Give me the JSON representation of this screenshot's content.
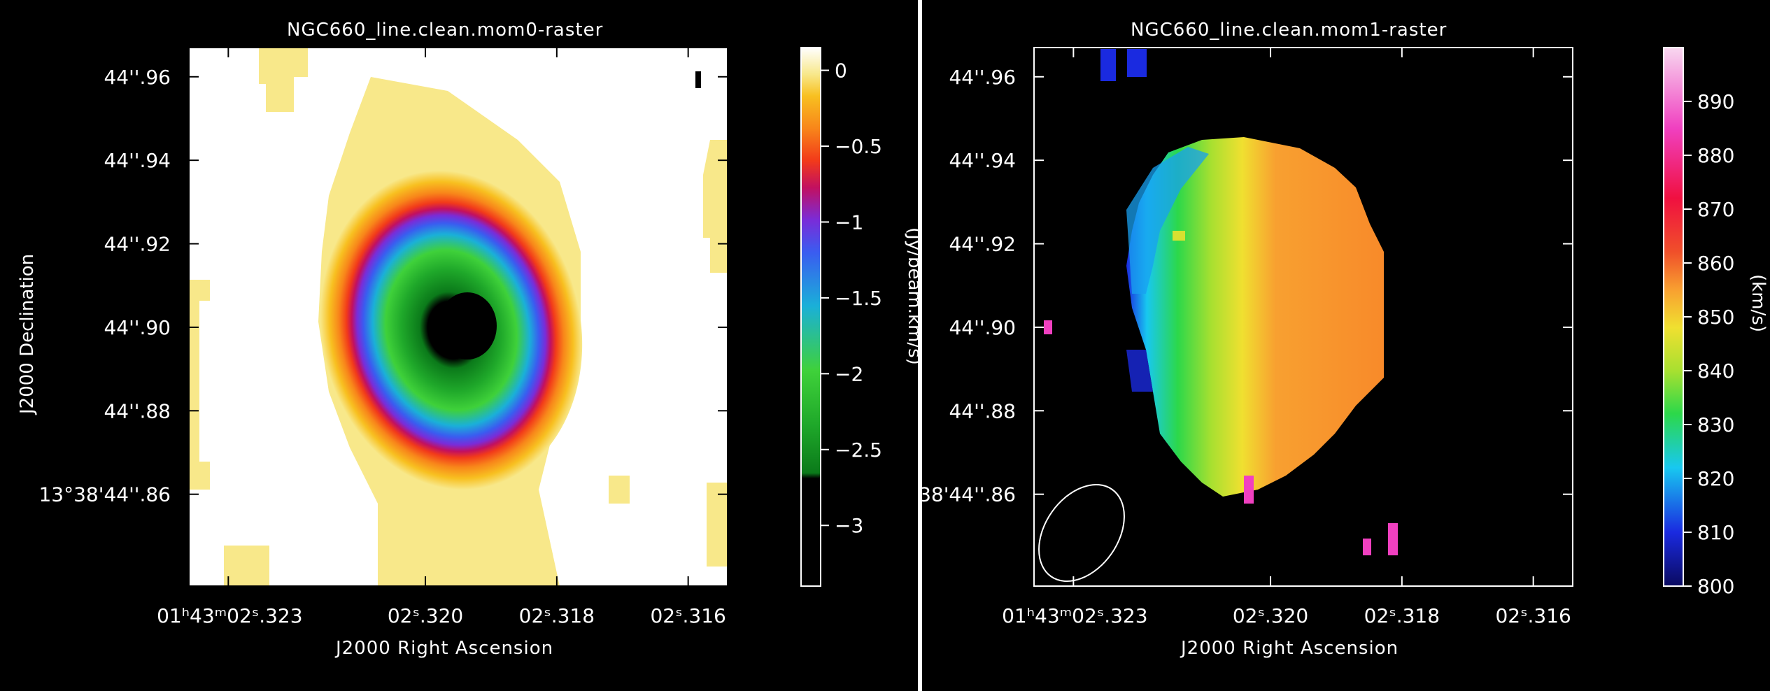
{
  "chart_data": [
    {
      "type": "heatmap",
      "title": "NGC660_line.clean.mom0-raster",
      "xlabel": "J2000 Right Ascension",
      "ylabel": "J2000 Declination",
      "colorbar_label": "(Jy/beam.km/s)",
      "x_ticks": [
        "01h43m02s.323",
        "02s.320",
        "02s.318",
        "02s.316"
      ],
      "y_ticks": [
        "44''.96",
        "44''.94",
        "44''.92",
        "44''.90",
        "44''.88",
        "13°38'44''.86"
      ],
      "colorbar_ticks": [
        0,
        -0.5,
        -1,
        -1.5,
        -2,
        -2.5,
        -3
      ],
      "colorbar_range": [
        -3.4,
        0.15
      ],
      "colorbar_colors": [
        "#000000",
        "#0b7a1a",
        "#1fa82a",
        "#3fd13a",
        "#1ab0d8",
        "#3a5cf0",
        "#7a2cd8",
        "#c21060",
        "#f23a1a",
        "#f8861a",
        "#f8c020",
        "#f8e88a",
        "#ffffff"
      ],
      "peak_value": -3.4,
      "peak_location": "center, slightly right of middle"
    },
    {
      "type": "heatmap",
      "title": "NGC660_line.clean.mom1-raster",
      "xlabel": "J2000 Right Ascension",
      "ylabel": "",
      "colorbar_label": "(km/s)",
      "x_ticks": [
        "01h43m02s.323",
        "02s.320",
        "02s.318",
        "02s.316"
      ],
      "y_ticks": [
        "44''.96",
        "44''.94",
        "44''.92",
        "44''.90",
        "44''.88",
        "38'44''.86"
      ],
      "colorbar_ticks": [
        890,
        880,
        870,
        860,
        850,
        840,
        830,
        820,
        810,
        800
      ],
      "colorbar_range": [
        800,
        900
      ],
      "colorbar_colors": [
        "#0a0a60",
        "#1a2ae0",
        "#18c8f0",
        "#2cd84a",
        "#a8e030",
        "#f0e030",
        "#f8a030",
        "#f0502a",
        "#f01040",
        "#f040c0",
        "#f8d8f0"
      ],
      "velocity_gradient": "blue/cyan (815-830 km/s) on east side to orange (850-855 km/s) on west side"
    }
  ]
}
